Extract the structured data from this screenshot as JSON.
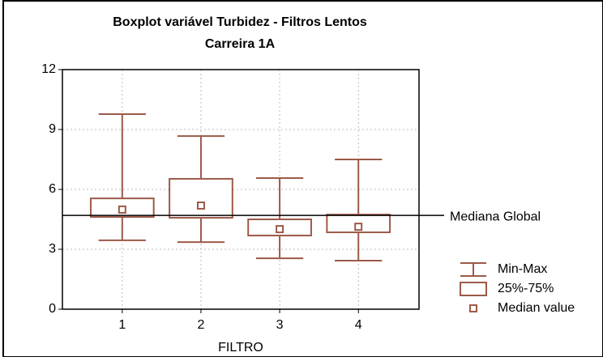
{
  "chart_data": {
    "type": "boxplot",
    "title": "Boxplot variável Turbidez - Filtros Lentos",
    "subtitle": "Carreira 1A",
    "x_label": "FILTRO",
    "x": [
      1,
      2,
      3,
      4
    ],
    "xlim": [
      0.24,
      4.77
    ],
    "xticks": [
      1,
      2,
      3,
      4
    ],
    "ylim": [
      0,
      12
    ],
    "yticks": [
      0,
      3,
      6,
      9,
      12
    ],
    "grid": true,
    "color": "#9c5a48",
    "min": [
      3.45,
      3.36,
      2.55,
      2.43
    ],
    "q1": [
      4.62,
      4.58,
      3.69,
      3.85
    ],
    "median": [
      4.99,
      5.19,
      4.01,
      4.13
    ],
    "q3": [
      5.55,
      6.53,
      4.5,
      4.74
    ],
    "max": [
      9.77,
      8.67,
      6.57,
      7.5
    ],
    "reference_line": {
      "label": "Mediana Global",
      "value": 4.7
    },
    "legend": [
      "Min-Max",
      "25%-75%",
      "Median value"
    ]
  }
}
